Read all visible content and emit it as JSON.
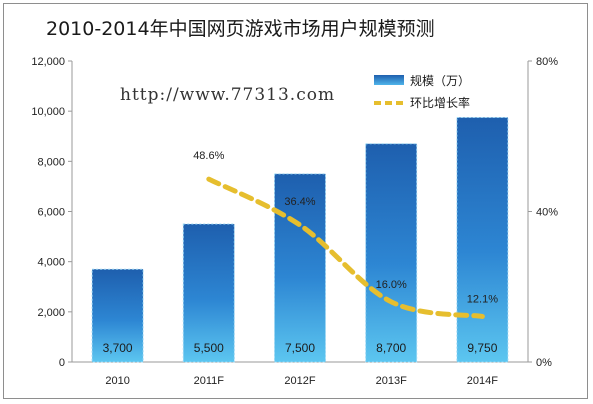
{
  "watermark": "http://www.77313.com",
  "chart_data": {
    "type": "bar",
    "title": "2010-2014年中国网页游戏市场用户规模预测",
    "categories": [
      "2010",
      "2011F",
      "2012F",
      "2013F",
      "2014F"
    ],
    "series": [
      {
        "name": "规模（万）",
        "kind": "bar",
        "axis": "left",
        "values": [
          3700,
          5500,
          7500,
          8700,
          9750
        ],
        "labels": [
          "3,700",
          "5,500",
          "7,500",
          "8,700",
          "9,750"
        ],
        "color": "#2b7bc6"
      },
      {
        "name": "环比增长率",
        "kind": "line",
        "axis": "right",
        "values": [
          null,
          48.6,
          36.4,
          16.0,
          12.1
        ],
        "labels": [
          null,
          "48.6%",
          "36.4%",
          "16.0%",
          "12.1%"
        ],
        "color": "#e6be2e"
      }
    ],
    "y_left": {
      "ylim": [
        0,
        12000
      ],
      "ticks": [
        "0",
        "2,000",
        "4,000",
        "6,000",
        "8,000",
        "10,000",
        "12,000"
      ]
    },
    "y_right": {
      "ylim": [
        0,
        80
      ],
      "ticks": [
        "0%",
        "40%",
        "80%"
      ]
    },
    "legend": "top-right",
    "grid": false
  }
}
